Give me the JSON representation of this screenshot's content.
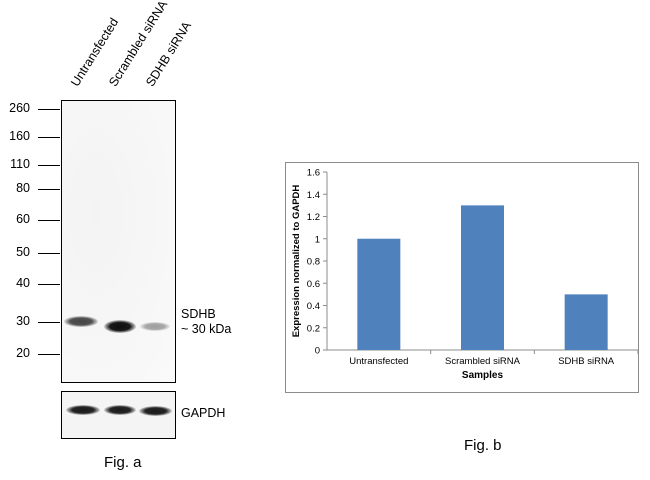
{
  "fig_a": {
    "lane_labels": [
      "Untransfected",
      "Scrambled siRNA",
      "SDHB siRNA"
    ],
    "mw_markers": [
      "260",
      "160",
      "110",
      "80",
      "60",
      "50",
      "40",
      "30",
      "20"
    ],
    "target_label": "SDHB",
    "target_size": "~ 30 kDa",
    "loading_control": "GAPDH",
    "caption": "Fig. a",
    "sdhb_band_intensity": [
      0.75,
      1.0,
      0.35
    ],
    "gapdh_band_intensity": [
      0.95,
      0.95,
      0.95
    ]
  },
  "fig_b": {
    "caption": "Fig. b"
  },
  "chart_data": {
    "type": "bar",
    "categories": [
      "Untransfected",
      "Scrambled siRNA",
      "SDHB siRNA"
    ],
    "values": [
      1.0,
      1.3,
      0.5
    ],
    "title": "",
    "xlabel": "Samples",
    "ylabel": "Expression normalized to GAPDH",
    "ylim": [
      0,
      1.6
    ],
    "yticks": [
      "0",
      "0.2",
      "0.4",
      "0.6",
      "0.8",
      "1",
      "1.2",
      "1.4",
      "1.6"
    ],
    "bar_color": "#4f81bd",
    "grid": false,
    "legend": "none"
  }
}
